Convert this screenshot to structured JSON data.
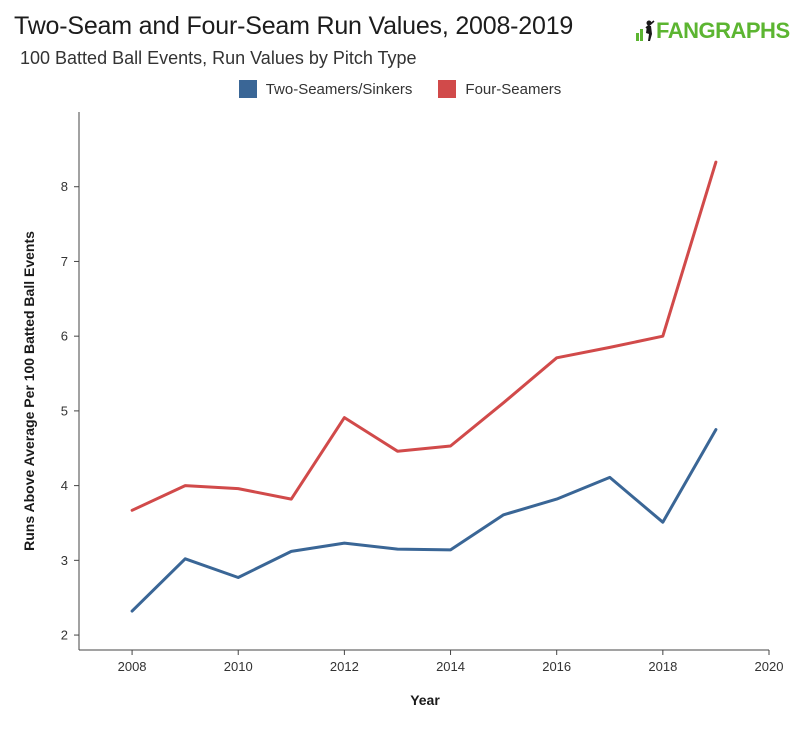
{
  "header": {
    "title": "Two-Seam and Four-Seam Run Values, 2008-2019",
    "subtitle": "100 Batted Ball Events, Run Values by Pitch Type",
    "logo_text": "FANGRAPHS"
  },
  "colors": {
    "two_seam": "#3a6696",
    "four_seam": "#d14a4a",
    "logo": "#5cb531"
  },
  "chart_data": {
    "type": "line",
    "xlabel": "Year",
    "ylabel": "Runs Above Average Per 100 Batted Ball Events",
    "xlim": [
      2007,
      2020
    ],
    "ylim": [
      1.8,
      9
    ],
    "x_ticks": [
      2008,
      2010,
      2012,
      2014,
      2016,
      2018,
      2020
    ],
    "y_ticks": [
      2,
      3,
      4,
      5,
      6,
      7,
      8
    ],
    "legend_position": "top-center",
    "grid": false,
    "x": [
      2008,
      2009,
      2010,
      2011,
      2012,
      2013,
      2014,
      2015,
      2016,
      2017,
      2018,
      2019
    ],
    "series": [
      {
        "name": "Two-Seamers/Sinkers",
        "color": "#3a6696",
        "values": [
          2.32,
          3.02,
          2.77,
          3.12,
          3.23,
          3.15,
          3.14,
          3.61,
          3.82,
          4.11,
          3.51,
          4.75
        ]
      },
      {
        "name": "Four-Seamers",
        "color": "#d14a4a",
        "values": [
          3.67,
          4.0,
          3.96,
          3.82,
          4.91,
          4.46,
          4.53,
          5.11,
          5.71,
          5.85,
          6.0,
          8.33
        ]
      }
    ]
  }
}
